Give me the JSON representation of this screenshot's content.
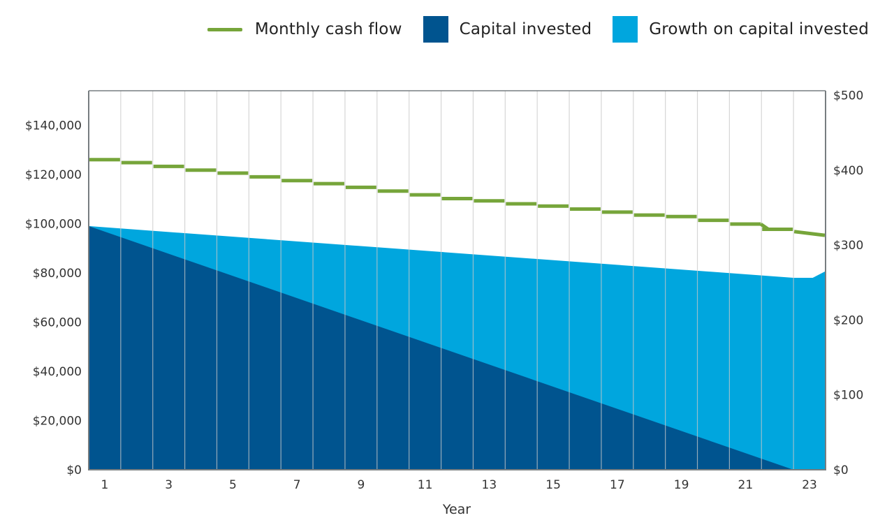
{
  "chart_data": {
    "type": "area",
    "title": "",
    "xlabel": "Year",
    "ylabel_left": "",
    "ylabel_right": "",
    "x": [
      1,
      2,
      3,
      4,
      5,
      6,
      7,
      8,
      9,
      10,
      11,
      12,
      13,
      14,
      15,
      16,
      17,
      18,
      19,
      20,
      21,
      22,
      23
    ],
    "x_tick_labels": [
      "1",
      "3",
      "5",
      "7",
      "9",
      "11",
      "13",
      "15",
      "17",
      "19",
      "21",
      "23"
    ],
    "x_tick_values": [
      1,
      3,
      5,
      7,
      9,
      11,
      13,
      15,
      17,
      19,
      21,
      23
    ],
    "left_axis": {
      "ylim": [
        0,
        154000
      ],
      "tick_values": [
        0,
        20000,
        40000,
        60000,
        80000,
        100000,
        120000,
        140000
      ],
      "tick_labels": [
        "$0",
        "$20,000",
        "$40,000",
        "$60,000",
        "$80,000",
        "$100,000",
        "$120,000",
        "$140,000"
      ]
    },
    "right_axis": {
      "ylim": [
        0,
        506
      ],
      "tick_values": [
        0,
        100,
        200,
        300,
        400,
        500
      ],
      "tick_labels": [
        "$0",
        "$100",
        "$200",
        "$300",
        "$400",
        "$500"
      ]
    },
    "grid": true,
    "legend_position": "top-right",
    "series": [
      {
        "name": "Monthly cash flow",
        "type": "line",
        "axis": "right",
        "color": "#76a53a",
        "values": [
          414,
          410,
          405,
          400,
          396,
          391,
          386,
          382,
          377,
          372,
          367,
          362,
          359,
          355,
          352,
          348,
          344,
          340,
          338,
          333,
          328,
          321,
          316
        ]
      },
      {
        "name": "Capital invested",
        "type": "area",
        "axis": "left",
        "color": "#00548f",
        "points": [
          [
            0,
            99000
          ],
          [
            22,
            0
          ],
          [
            23,
            0
          ]
        ]
      },
      {
        "name": "Growth on capital invested",
        "type": "area",
        "axis": "left",
        "color": "#00a6de",
        "total_points": [
          [
            0,
            99000
          ],
          [
            22,
            78000
          ],
          [
            22.6,
            78000
          ],
          [
            23,
            80700
          ]
        ]
      }
    ]
  },
  "legend": {
    "items": [
      {
        "label": "Monthly cash flow",
        "color": "#76a53a",
        "kind": "line"
      },
      {
        "label": "Capital invested",
        "color": "#00548f",
        "kind": "swatch"
      },
      {
        "label": "Growth on capital invested",
        "color": "#00a6de",
        "kind": "swatch"
      }
    ]
  }
}
